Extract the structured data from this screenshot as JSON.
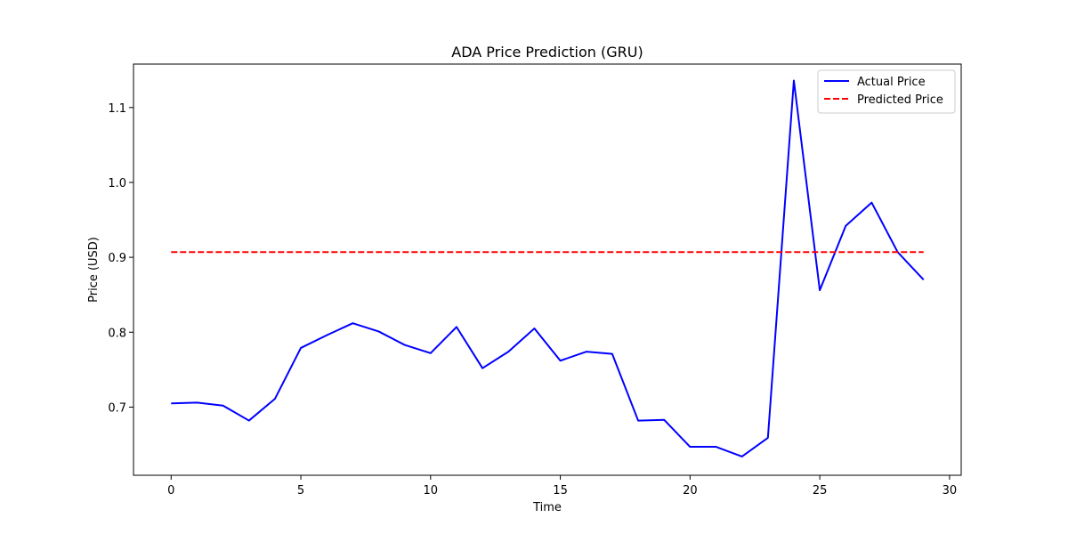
{
  "chart_data": {
    "type": "line",
    "title": "ADA Price Prediction (GRU)",
    "xlabel": "Time",
    "ylabel": "Price (USD)",
    "xlim": [
      -1.45,
      30.45
    ],
    "ylim": [
      0.609,
      1.158
    ],
    "xticks": [
      0,
      5,
      10,
      15,
      20,
      25,
      30
    ],
    "yticks": [
      0.7,
      0.8,
      0.9,
      1.0,
      1.1
    ],
    "ytick_labels": [
      "0.7",
      "0.8",
      "0.9",
      "1.0",
      "1.1"
    ],
    "grid": false,
    "legend_position": "top-right",
    "x": [
      0,
      1,
      2,
      3,
      4,
      5,
      6,
      7,
      8,
      9,
      10,
      11,
      12,
      13,
      14,
      15,
      16,
      17,
      18,
      19,
      20,
      21,
      22,
      23,
      24,
      25,
      26,
      27,
      28,
      29
    ],
    "series": [
      {
        "name": "Actual Price",
        "color": "#0000ff",
        "style": "solid",
        "values": [
          0.705,
          0.706,
          0.702,
          0.682,
          0.711,
          0.779,
          0.796,
          0.812,
          0.801,
          0.783,
          0.772,
          0.807,
          0.752,
          0.774,
          0.805,
          0.762,
          0.774,
          0.771,
          0.682,
          0.683,
          0.647,
          0.647,
          0.634,
          0.659,
          1.136,
          0.856,
          0.942,
          0.973,
          0.907,
          0.87
        ]
      },
      {
        "name": "Predicted Price",
        "color": "#ff0000",
        "style": "dashed",
        "values": [
          0.907,
          0.907,
          0.907,
          0.907,
          0.907,
          0.907,
          0.907,
          0.907,
          0.907,
          0.907,
          0.907,
          0.907,
          0.907,
          0.907,
          0.907,
          0.907,
          0.907,
          0.907,
          0.907,
          0.907,
          0.907,
          0.907,
          0.907,
          0.907,
          0.907,
          0.907,
          0.907,
          0.907,
          0.907,
          0.907
        ]
      }
    ]
  }
}
